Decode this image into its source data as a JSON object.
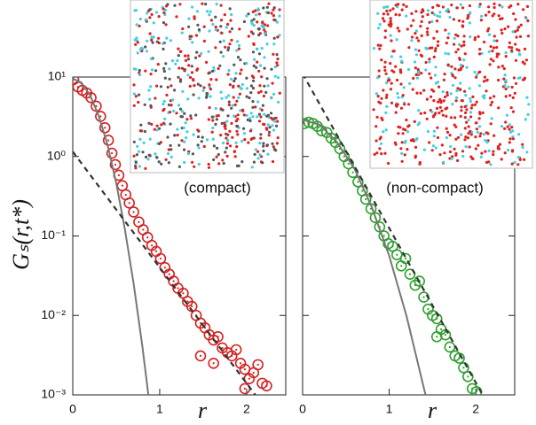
{
  "chart_data": [
    {
      "type": "scatter",
      "ylabel": "Gₛ(r,t*)",
      "xlabel": "r",
      "annotation": "(compact)",
      "log_y": true,
      "xlim": [
        0,
        2.45
      ],
      "ylim": [
        0.001,
        10
      ],
      "xticks": [
        0,
        1,
        2
      ],
      "yticks": [
        {
          "value": 10,
          "label": "10¹"
        },
        {
          "value": 1,
          "label": "10⁰"
        },
        {
          "value": 0.1,
          "label": "10⁻¹"
        },
        {
          "value": 0.01,
          "label": "10⁻²"
        },
        {
          "value": 0.001,
          "label": "10⁻³"
        }
      ],
      "series": [
        {
          "mode": "markers",
          "color": "#d42020",
          "x": [
            0.01,
            0.06,
            0.11,
            0.16,
            0.21,
            0.27,
            0.32,
            0.37,
            0.41,
            0.45,
            0.49,
            0.53,
            0.57,
            0.61,
            0.65,
            0.7,
            0.76,
            0.81,
            0.86,
            0.91,
            0.96,
            1.01,
            1.06,
            1.11,
            1.16,
            1.21,
            1.27,
            1.32,
            1.37,
            1.42,
            1.47,
            1.52,
            1.57,
            1.62,
            1.67,
            1.72,
            1.78,
            1.83,
            1.88,
            1.93,
            1.98,
            2.03,
            2.08,
            2.13,
            2.18,
            2.23,
            1.47,
            1.62,
            1.98
          ],
          "values": [
            9.3,
            7.5,
            6.8,
            6.3,
            5.5,
            4.3,
            3.2,
            2.3,
            1.6,
            1.1,
            0.79,
            0.58,
            0.43,
            0.33,
            0.26,
            0.2,
            0.15,
            0.12,
            0.096,
            0.076,
            0.064,
            0.052,
            0.04,
            0.033,
            0.027,
            0.022,
            0.019,
            0.015,
            0.013,
            0.01,
            0.008,
            0.007,
            0.0057,
            0.0049,
            0.0054,
            0.0039,
            0.0034,
            0.0031,
            0.0037,
            0.0025,
            0.0021,
            0.0016,
            0.0019,
            0.0024,
            0.0014,
            0.0013,
            0.0031,
            0.0025,
            0.0012
          ]
        },
        {
          "mode": "line",
          "color": "#777777",
          "x": [
            0,
            0.1,
            0.2,
            0.3,
            0.4,
            0.5,
            0.6,
            0.7,
            0.8,
            0.87
          ],
          "values": [
            9.6,
            8.5,
            5.9,
            3.2,
            1.4,
            0.46,
            0.12,
            0.025,
            0.0041,
            0.001
          ]
        },
        {
          "mode": "dashed",
          "color": "#333333",
          "x": [
            0,
            2.1
          ],
          "values": [
            1.15,
            0.001
          ]
        }
      ]
    },
    {
      "type": "scatter",
      "xlabel": "r",
      "annotation": "(non-compact)",
      "log_y": true,
      "xlim": [
        0,
        2.45
      ],
      "ylim": [
        0.001,
        10
      ],
      "xticks": [
        0,
        1,
        2
      ],
      "yticks": [
        10,
        1,
        0.1,
        0.01,
        0.001
      ],
      "series": [
        {
          "mode": "markers",
          "color": "#2ea02e",
          "x": [
            0.02,
            0.07,
            0.12,
            0.17,
            0.22,
            0.28,
            0.33,
            0.38,
            0.43,
            0.48,
            0.53,
            0.58,
            0.64,
            0.69,
            0.73,
            0.79,
            0.84,
            0.89,
            0.94,
            0.99,
            1.04,
            1.09,
            1.14,
            1.19,
            1.24,
            1.3,
            1.35,
            1.4,
            1.45,
            1.5,
            1.55,
            1.6,
            1.65,
            1.7,
            1.76,
            1.81,
            1.86,
            1.91,
            1.96,
            2.01,
            1.55
          ],
          "values": [
            2.6,
            2.7,
            2.6,
            2.4,
            2.1,
            2.0,
            1.7,
            1.5,
            1.25,
            1.0,
            0.81,
            0.63,
            0.48,
            0.37,
            0.29,
            0.22,
            0.17,
            0.13,
            0.1,
            0.08,
            0.074,
            0.058,
            0.042,
            0.052,
            0.033,
            0.024,
            0.027,
            0.017,
            0.012,
            0.01,
            0.0091,
            0.0067,
            0.0057,
            0.004,
            0.0031,
            0.0029,
            0.0022,
            0.0017,
            0.0012,
            0.0011,
            0.0054
          ]
        },
        {
          "mode": "line",
          "color": "#777777",
          "x": [
            0,
            0.2,
            0.4,
            0.6,
            0.8,
            1.0,
            1.2,
            1.42
          ],
          "values": [
            2.9,
            2.5,
            1.5,
            0.7,
            0.23,
            0.056,
            0.0098,
            0.001
          ]
        },
        {
          "mode": "dashed",
          "color": "#333333",
          "x": [
            0,
            2.08
          ],
          "values": [
            11,
            0.001
          ]
        }
      ]
    }
  ]
}
